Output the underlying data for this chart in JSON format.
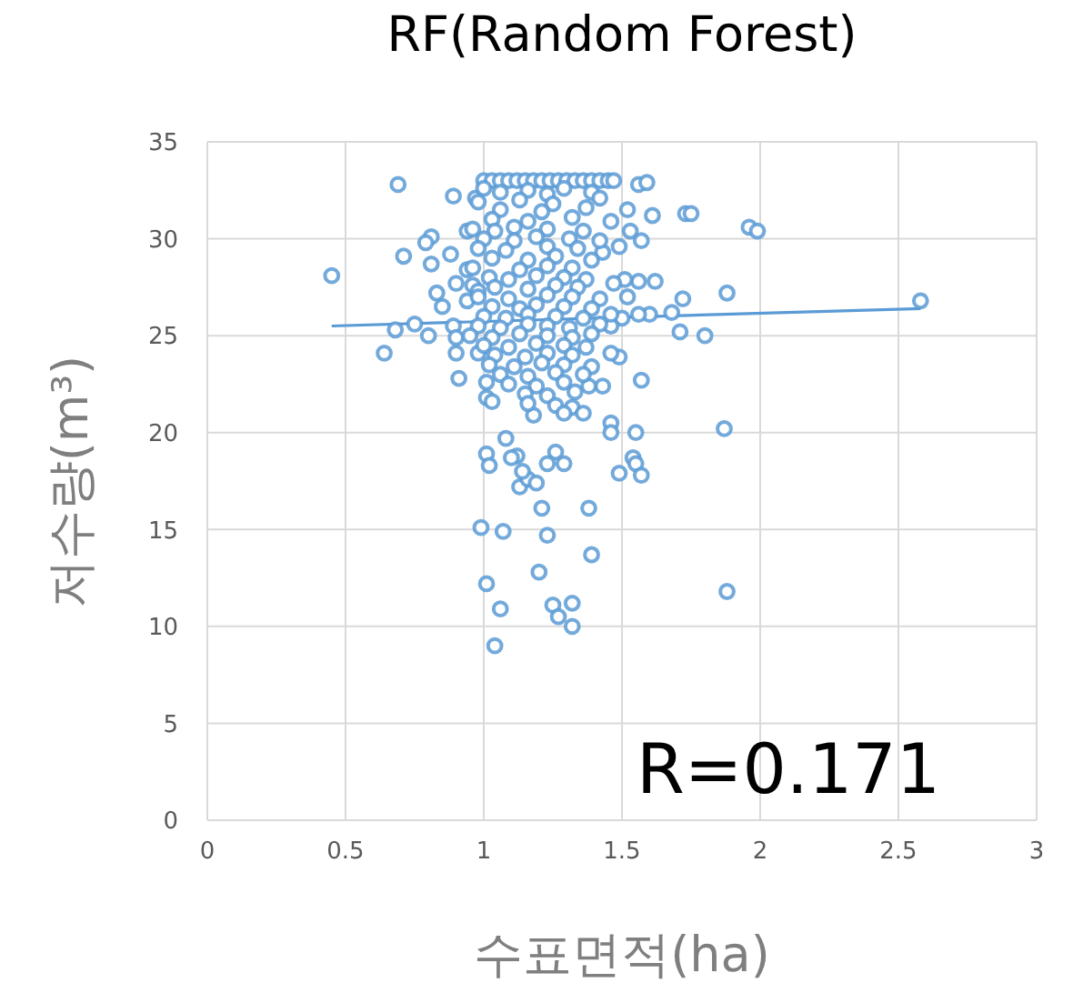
{
  "chart_data": {
    "type": "scatter",
    "title": "RF(Random Forest)",
    "xlabel": "수표면적(ha)",
    "ylabel": "저수량(m³)",
    "annotations": [
      "R=0.171"
    ],
    "xlim": [
      0,
      3
    ],
    "xticks": [
      0,
      0.5,
      1,
      1.5,
      2,
      2.5,
      3
    ],
    "ylim": [
      0,
      35
    ],
    "yticks": [
      0,
      5,
      10,
      15,
      20,
      25,
      30,
      35
    ],
    "grid": true,
    "series": [
      {
        "color": "#5b9bd5",
        "marker": "circle",
        "x": [
          0.45,
          0.69,
          0.89,
          0.97,
          0.81,
          0.79,
          0.71,
          0.88,
          0.81,
          0.94,
          0.9,
          0.83,
          0.85,
          0.75,
          0.68,
          0.8,
          0.89,
          0.9,
          0.64,
          0.9,
          0.98,
          0.91,
          1.01,
          1.01,
          1.03,
          1.08,
          1.01,
          1.12,
          0.96,
          0.94,
          0.98,
          0.94,
          1.61,
          1.73,
          1.75,
          1.96,
          1.99,
          1.53,
          1.57,
          1.43,
          1.49,
          1.62,
          1.56,
          1.51,
          1.47,
          1.72,
          1.88,
          1.68,
          1.6,
          1.56,
          1.71,
          1.8,
          1.5,
          1.46,
          1.49,
          1.43,
          1.57,
          1.38,
          1.46,
          1.55,
          1.87,
          1.46,
          1.32,
          1.36,
          1.18,
          1.26,
          1.54,
          2.58,
          1.56,
          1.59,
          1.02,
          1.1,
          1.13,
          0.99,
          1.07,
          1.01,
          1.06,
          1.04,
          1.49,
          1.55,
          1.57,
          1.38,
          1.21,
          1.23,
          1.39,
          1.2,
          1.88,
          1.25,
          1.32,
          1.27,
          1.32,
          1.16,
          1.19,
          1.14,
          1.23,
          1.29,
          1.0,
          1.03,
          1.06,
          1.09,
          1.12,
          1.15,
          1.18,
          1.21,
          1.24,
          1.27,
          1.3,
          1.33,
          1.36,
          1.39,
          1.42,
          1.45,
          1.47,
          1.0,
          1.06,
          1.16,
          1.23,
          1.29,
          1.39,
          0.98,
          1.13,
          1.25,
          1.42,
          1.06,
          1.21,
          1.37,
          1.52,
          1.03,
          1.16,
          1.32,
          1.46,
          0.96,
          1.04,
          1.11,
          1.23,
          1.36,
          1.0,
          1.11,
          1.19,
          1.31,
          1.42,
          0.98,
          1.08,
          1.23,
          1.34,
          1.03,
          1.16,
          1.26,
          1.39,
          0.96,
          1.13,
          1.23,
          1.32,
          1.02,
          1.09,
          1.19,
          1.29,
          1.37,
          1.04,
          1.16,
          1.26,
          1.34,
          0.98,
          1.09,
          1.23,
          1.32,
          1.42,
          1.52,
          1.03,
          1.13,
          1.19,
          1.29,
          1.39,
          1.0,
          1.08,
          1.16,
          1.26,
          1.36,
          1.46,
          0.98,
          1.06,
          1.16,
          1.23,
          1.31,
          1.42,
          0.95,
          1.03,
          1.13,
          1.23,
          1.32,
          1.39,
          1.0,
          1.09,
          1.19,
          1.29,
          1.37,
          1.04,
          1.15,
          1.23,
          1.32,
          1.46,
          1.02,
          1.11,
          1.21,
          1.29,
          1.39,
          1.06,
          1.16,
          1.26,
          1.36,
          1.09,
          1.19,
          1.29,
          1.15,
          1.23,
          1.33,
          1.16,
          1.26,
          1.29
        ],
        "values": [
          28.1,
          32.8,
          32.2,
          32.1,
          30.1,
          29.8,
          29.1,
          29.2,
          28.7,
          28.4,
          27.7,
          27.2,
          26.5,
          25.6,
          25.3,
          25.0,
          25.5,
          24.9,
          24.1,
          24.1,
          24.1,
          22.8,
          22.6,
          21.8,
          21.6,
          19.7,
          18.9,
          18.8,
          27.6,
          26.8,
          27.3,
          30.4,
          31.2,
          31.3,
          31.3,
          30.6,
          30.4,
          30.4,
          29.9,
          29.3,
          29.6,
          27.8,
          27.8,
          27.9,
          27.7,
          26.9,
          27.2,
          26.2,
          26.1,
          26.1,
          25.2,
          25.0,
          25.9,
          25.5,
          23.9,
          22.4,
          22.7,
          22.4,
          20.5,
          20.0,
          20.2,
          20.0,
          21.3,
          21.0,
          20.9,
          19.0,
          18.7,
          26.8,
          32.8,
          32.9,
          18.3,
          18.7,
          17.2,
          15.1,
          14.9,
          12.2,
          10.9,
          9.0,
          17.9,
          18.4,
          17.8,
          16.1,
          16.1,
          14.7,
          13.7,
          12.8,
          11.8,
          11.1,
          11.2,
          10.5,
          10.0,
          17.6,
          17.4,
          18.0,
          18.4,
          18.4,
          33,
          33,
          33,
          33,
          33,
          33,
          33,
          33,
          33,
          33,
          33,
          33,
          33,
          33,
          33,
          33,
          33,
          32.6,
          32.4,
          32.5,
          32.3,
          32.6,
          32.4,
          31.9,
          32.0,
          31.8,
          32.1,
          31.5,
          31.4,
          31.6,
          31.5,
          31.0,
          30.9,
          31.1,
          30.9,
          30.5,
          30.4,
          30.6,
          30.5,
          30.4,
          30.0,
          29.9,
          30.1,
          30.0,
          29.9,
          29.5,
          29.4,
          29.6,
          29.5,
          29.0,
          28.9,
          29.1,
          28.9,
          28.5,
          28.4,
          28.6,
          28.5,
          28.0,
          27.9,
          28.1,
          28.0,
          27.9,
          27.5,
          27.4,
          27.6,
          27.5,
          27.0,
          26.9,
          27.1,
          27.0,
          26.9,
          27.0,
          26.5,
          26.4,
          26.6,
          26.5,
          26.4,
          26.0,
          25.9,
          26.1,
          26.0,
          25.9,
          26.1,
          25.5,
          25.4,
          25.6,
          25.5,
          25.4,
          25.6,
          25.0,
          24.9,
          25.1,
          25.0,
          24.9,
          25.1,
          24.5,
          24.4,
          24.6,
          24.5,
          24.4,
          24.0,
          23.9,
          24.1,
          24.0,
          24.1,
          23.5,
          23.4,
          23.6,
          23.5,
          23.4,
          23.0,
          22.9,
          23.1,
          23.0,
          22.5,
          22.4,
          22.6,
          22.0,
          21.9,
          22.1,
          21.5,
          21.4,
          21.0
        ]
      },
      {
        "type": "line",
        "color": "#5b9bd5",
        "x": [
          0.45,
          2.58
        ],
        "values": [
          25.5,
          26.4
        ]
      }
    ]
  }
}
